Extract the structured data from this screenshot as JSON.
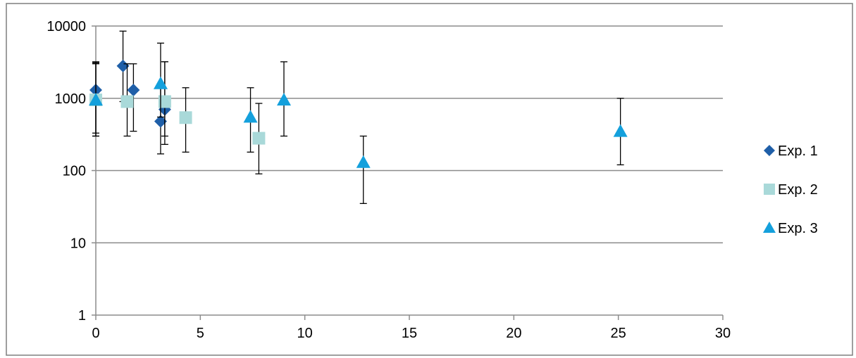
{
  "chart_data": {
    "type": "scatter",
    "title": "",
    "xlabel": "",
    "ylabel": "",
    "xlim": [
      0,
      30
    ],
    "ylim": [
      1,
      10000
    ],
    "yscale": "log",
    "x_ticks": [
      "0",
      "5",
      "10",
      "15",
      "20",
      "25",
      "30"
    ],
    "y_ticks": [
      "1",
      "10",
      "100",
      "1000",
      "10000"
    ],
    "grid": "horizontal",
    "legend": "right",
    "series": [
      {
        "name": "Exp. 1",
        "marker": "diamond",
        "color": "#1F5FA8",
        "points": [
          {
            "x": 0.0,
            "y": 1300,
            "err_low": 330,
            "err_high": 3000
          },
          {
            "x": 1.3,
            "y": 2800,
            "err_low": 900,
            "err_high": 8500
          },
          {
            "x": 1.8,
            "y": 1300,
            "err_low": 350,
            "err_high": 3000
          },
          {
            "x": 3.1,
            "y": 480,
            "err_low": 170,
            "err_high": 1600
          },
          {
            "x": 3.3,
            "y": 700,
            "err_low": 230,
            "err_high": 3200
          }
        ]
      },
      {
        "name": "Exp. 2",
        "marker": "square",
        "color": "#A9D9D9",
        "points": [
          {
            "x": 0.0,
            "y": 950,
            "err_low": 300,
            "err_high": 3200
          },
          {
            "x": 1.5,
            "y": 900,
            "err_low": 300,
            "err_high": 3000
          },
          {
            "x": 3.3,
            "y": 900,
            "err_low": 300,
            "err_high": 3200
          },
          {
            "x": 4.3,
            "y": 540,
            "err_low": 180,
            "err_high": 1400
          },
          {
            "x": 7.8,
            "y": 280,
            "err_low": 90,
            "err_high": 850
          }
        ]
      },
      {
        "name": "Exp. 3",
        "marker": "triangle",
        "color": "#14A0DC",
        "points": [
          {
            "x": 0.0,
            "y": 950,
            "err_low": 300,
            "err_high": 3100
          },
          {
            "x": 3.1,
            "y": 1600,
            "err_low": 550,
            "err_high": 5800
          },
          {
            "x": 7.4,
            "y": 550,
            "err_low": 180,
            "err_high": 1400
          },
          {
            "x": 9.0,
            "y": 950,
            "err_low": 300,
            "err_high": 3200
          },
          {
            "x": 12.8,
            "y": 130,
            "err_low": 35,
            "err_high": 300
          },
          {
            "x": 25.1,
            "y": 350,
            "err_low": 120,
            "err_high": 1000
          }
        ]
      }
    ]
  }
}
